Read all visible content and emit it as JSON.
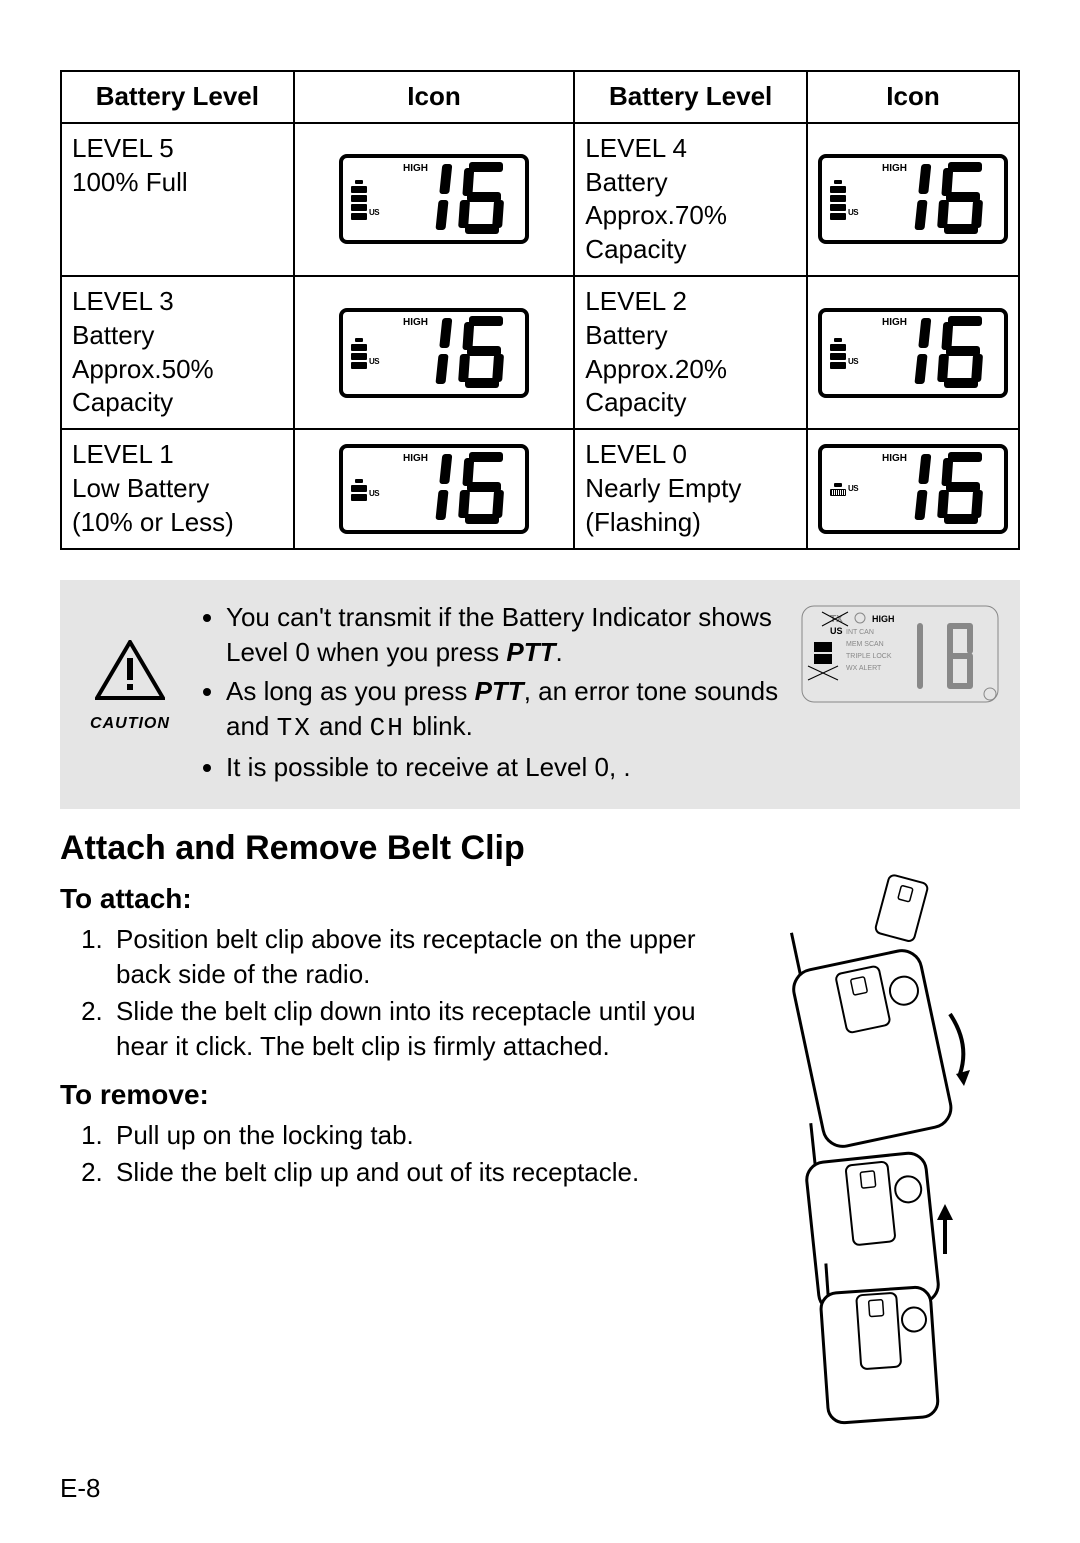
{
  "table": {
    "headers": [
      "Battery Level",
      "Icon",
      "Battery Level",
      "Icon"
    ],
    "rows": [
      {
        "leftDesc": [
          "LEVEL 5",
          "100%  Full"
        ],
        "leftLcd": {
          "bars": 4,
          "high": "HIGH",
          "us": "US",
          "digits": "16"
        },
        "rightDesc": [
          "LEVEL 4",
          "Battery",
          "Approx.70%",
          "Capacity"
        ],
        "rightLcd": {
          "bars": 4,
          "high": "HIGH",
          "us": "US",
          "digits": "16"
        }
      },
      {
        "leftDesc": [
          "LEVEL 3",
          "Battery",
          "Approx.50%",
          "Capacity"
        ],
        "leftLcd": {
          "bars": 3,
          "high": "HIGH",
          "us": "US",
          "digits": "16"
        },
        "rightDesc": [
          "LEVEL 2",
          "Battery",
          "Approx.20%",
          "Capacity"
        ],
        "rightLcd": {
          "bars": 3,
          "high": "HIGH",
          "us": "US",
          "digits": "16"
        }
      },
      {
        "leftDesc": [
          "LEVEL 1",
          "Low Battery",
          "(10% or Less)"
        ],
        "leftLcd": {
          "bars": 2,
          "high": "HIGH",
          "us": "US",
          "digits": "16"
        },
        "rightDesc": [
          "LEVEL 0",
          "Nearly Empty",
          "(Flashing)"
        ],
        "rightLcd": {
          "bars": 1,
          "hatched": true,
          "high": "HIGH",
          "us": "US",
          "digits": "16"
        }
      }
    ],
    "bars_total": 4
  },
  "caution": {
    "label": "CAUTION",
    "bullets": [
      {
        "pre": "You can't transmit if the Battery Indicator shows Level 0 when you press ",
        "em": "PTT",
        "post": "."
      },
      {
        "pre": "As long as you press ",
        "em": "PTT",
        "post": ", an error tone sounds and ",
        "tx": "TX",
        "mid": " and ",
        "ch": "CH",
        "post2": " blink."
      },
      {
        "pre": "It is possible to receive at Level 0, ."
      }
    ],
    "mini_lcd": {
      "high": "HIGH",
      "us": "US",
      "lines": [
        "INT CAN",
        "MEM SCAN",
        "TRIPLE LOCK",
        "WX ALERT"
      ],
      "digits": "16",
      "tx": "TX"
    }
  },
  "beltclip": {
    "heading": "Attach and Remove Belt Clip",
    "attach_label": "To attach",
    "attach_steps": [
      "Position belt clip above its receptacle on the upper back side of the radio.",
      "Slide the belt clip down into its receptacle until you hear it click. The belt clip is firmly attached."
    ],
    "remove_label": "To remove:",
    "remove_steps": [
      "Pull up on the locking tab.",
      "Slide the belt clip up and out of its receptacle."
    ]
  },
  "page_number": "E-8",
  "colors": {
    "caution_bg": "#e5e5e5",
    "border": "#000000",
    "text": "#000000",
    "background": "#ffffff"
  }
}
